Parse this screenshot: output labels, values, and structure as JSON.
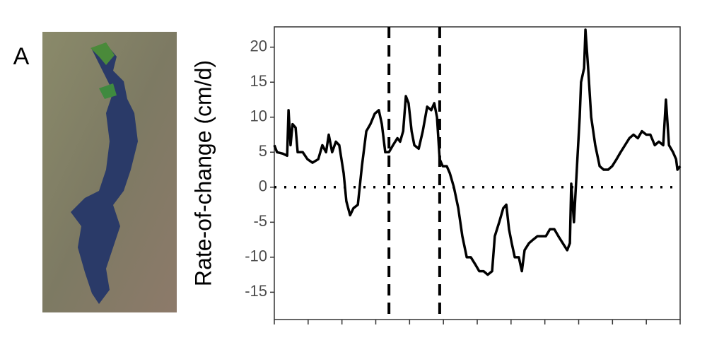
{
  "panel_label": "A",
  "chart_data": {
    "type": "line",
    "y_label": "Rate-of-change (cm/d)",
    "x": [
      0,
      0.08,
      0.25,
      0.38,
      0.42,
      0.48,
      0.54,
      0.63,
      0.69,
      0.84,
      0.98,
      1.13,
      1.3,
      1.42,
      1.53,
      1.61,
      1.71,
      1.82,
      1.92,
      2.05,
      2.13,
      2.24,
      2.34,
      2.47,
      2.59,
      2.72,
      2.84,
      2.97,
      3.09,
      3.18,
      3.28,
      3.39,
      3.51,
      3.64,
      3.72,
      3.81,
      3.89,
      3.97,
      4.06,
      4.14,
      4.27,
      4.39,
      4.52,
      4.64,
      4.73,
      4.81,
      4.89,
      4.98,
      5.1,
      5.19,
      5.31,
      5.44,
      5.56,
      5.69,
      5.81,
      5.94,
      6.06,
      6.19,
      6.31,
      6.44,
      6.52,
      6.65,
      6.77,
      6.86,
      6.94,
      7.02,
      7.11,
      7.23,
      7.32,
      7.4,
      7.53,
      7.65,
      7.78,
      7.9,
      8.03,
      8.15,
      8.28,
      8.4,
      8.53,
      8.66,
      8.74,
      8.78,
      8.86,
      8.95,
      9.03,
      9.07,
      9.16,
      9.2,
      9.28,
      9.37,
      9.49,
      9.62,
      9.74,
      9.87,
      9.99,
      10.12,
      10.24,
      10.37,
      10.5,
      10.62,
      10.75,
      10.87,
      11,
      11.12,
      11.25,
      11.37,
      11.5,
      11.58,
      11.67,
      11.79,
      11.88,
      11.92,
      12
    ],
    "series": [
      {
        "color": "#000000",
        "values": [
          6,
          5,
          4.8,
          4.5,
          11,
          6,
          9,
          8.5,
          5,
          5,
          4,
          3.5,
          4,
          6,
          5,
          7.5,
          5,
          6.5,
          6,
          2,
          -2,
          -4,
          -3,
          -2.5,
          3,
          8,
          9,
          10.5,
          11,
          9,
          5,
          5,
          6,
          7,
          6.5,
          8,
          13,
          12,
          8,
          6,
          5.5,
          8,
          11.5,
          11,
          12,
          10,
          4,
          3,
          3,
          2,
          0,
          -3,
          -7,
          -10,
          -10,
          -11,
          -12,
          -12,
          -12.5,
          -12,
          -7,
          -5,
          -3,
          -2.5,
          -6,
          -8,
          -10,
          -10,
          -12,
          -9,
          -8,
          -7.5,
          -7,
          -7,
          -7,
          -6,
          -6,
          -7,
          -8,
          -9,
          -8,
          0.5,
          -5,
          3,
          10,
          15,
          17,
          22.5,
          17,
          10,
          6,
          3,
          2.5,
          2.5,
          3,
          4,
          5,
          6,
          7,
          7.5,
          7,
          8,
          7.5,
          7.5,
          6,
          6.5,
          6,
          12.5,
          6,
          5,
          4,
          2.5,
          3
        ]
      }
    ],
    "xlim": [
      0,
      12
    ],
    "xticks": [
      0,
      1,
      2,
      3,
      4,
      5,
      6,
      7,
      8,
      9,
      10,
      11,
      12
    ],
    "ylim": [
      -18.9,
      22.9
    ],
    "yticks": [
      -15,
      -10,
      -5,
      0,
      5,
      10,
      15,
      20
    ],
    "vlines": [
      3.39,
      4.89
    ],
    "hlines": [
      0
    ],
    "grid": false
  }
}
